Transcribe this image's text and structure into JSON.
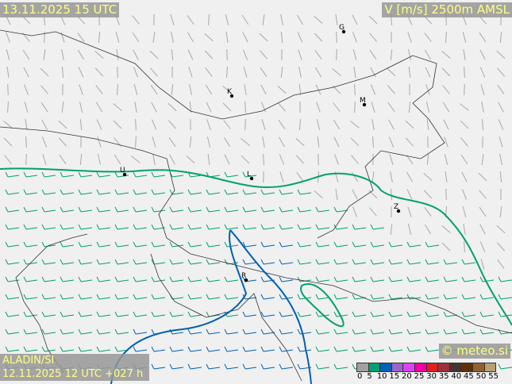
{
  "header": {
    "valid_time": "13.11.2025 15 UTC",
    "field": "V [m/s] 2500m AMSL"
  },
  "footer": {
    "model": "ALADIN/SI",
    "run": "12.11.2025 12 UTC +027 h",
    "copyright": "© meteo.si"
  },
  "legend": {
    "ticks": [
      "0",
      "5",
      "10",
      "15",
      "20",
      "25",
      "30",
      "35",
      "40",
      "45",
      "50",
      "55"
    ],
    "colors": [
      "#a0a0a0",
      "#00a070",
      "#0060b4",
      "#9966cc",
      "#e040f0",
      "#f000a0",
      "#e02020",
      "#a03038",
      "#4a3232",
      "#603000",
      "#906030",
      "#b8a070"
    ]
  },
  "cities": [
    {
      "label": "G"
    },
    {
      "label": "K"
    },
    {
      "label": "M"
    },
    {
      "label": "U"
    },
    {
      "label": "L"
    },
    {
      "label": "Z"
    },
    {
      "label": "R"
    }
  ]
}
